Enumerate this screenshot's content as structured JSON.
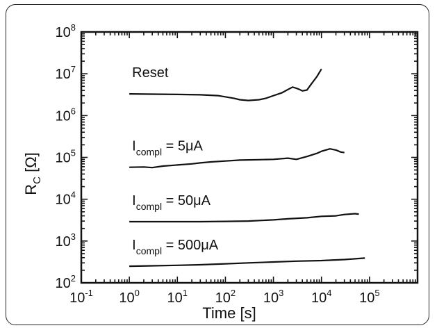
{
  "chart_data": {
    "type": "line",
    "xscale": "log",
    "yscale": "log",
    "xlim": [
      0.1,
      1000000
    ],
    "ylim": [
      100,
      100000000
    ],
    "xlabel": "Time [s]",
    "ylabel_main": "R",
    "ylabel_sub": "C",
    "ylabel_unit": "[Ω]",
    "x_ticks": [
      {
        "value": 0.1,
        "base": "10",
        "exp": "-1"
      },
      {
        "value": 1,
        "base": "10",
        "exp": "0"
      },
      {
        "value": 10,
        "base": "10",
        "exp": "1"
      },
      {
        "value": 100,
        "base": "10",
        "exp": "2"
      },
      {
        "value": 1000,
        "base": "10",
        "exp": "3"
      },
      {
        "value": 10000,
        "base": "10",
        "exp": "4"
      },
      {
        "value": 100000,
        "base": "10",
        "exp": "5"
      }
    ],
    "y_ticks": [
      {
        "value": 100,
        "base": "10",
        "exp": "2"
      },
      {
        "value": 1000,
        "base": "10",
        "exp": "3"
      },
      {
        "value": 10000,
        "base": "10",
        "exp": "4"
      },
      {
        "value": 100000,
        "base": "10",
        "exp": "5"
      },
      {
        "value": 1000000,
        "base": "10",
        "exp": "6"
      },
      {
        "value": 10000000,
        "base": "10",
        "exp": "7"
      },
      {
        "value": 100000000,
        "base": "10",
        "exp": "8"
      }
    ],
    "grid": false,
    "line_color": "#111111",
    "series": [
      {
        "label_main": "Reset",
        "label_sub": "",
        "label_tail": "",
        "x": [
          1,
          3,
          10,
          30,
          70,
          150,
          200,
          300,
          500,
          700,
          1000,
          1500,
          2000,
          2500,
          3000,
          3500,
          4000,
          5000,
          6000,
          8000,
          10000
        ],
        "y": [
          3300000,
          3250000,
          3200000,
          3150000,
          3000000,
          2600000,
          2400000,
          2300000,
          2400000,
          2600000,
          3000000,
          3500000,
          4200000,
          4800000,
          4500000,
          4200000,
          3900000,
          4100000,
          5500000,
          8500000,
          13000000
        ]
      },
      {
        "label_main": "I",
        "label_sub": "compl",
        "label_tail": " = 5μA",
        "x": [
          1,
          2,
          3,
          5,
          10,
          20,
          30,
          50,
          100,
          200,
          500,
          1000,
          2000,
          3000,
          5000,
          8000,
          10000,
          15000,
          20000,
          25000,
          30000
        ],
        "y": [
          58000,
          59000,
          57000,
          62000,
          66000,
          70000,
          74000,
          78000,
          82000,
          86000,
          88000,
          90000,
          96000,
          90000,
          105000,
          125000,
          140000,
          160000,
          150000,
          135000,
          130000
        ]
      },
      {
        "label_main": "I",
        "label_sub": "compl",
        "label_tail": " = 50μA",
        "x": [
          1,
          3,
          10,
          30,
          100,
          300,
          1000,
          2000,
          5000,
          10000,
          20000,
          30000,
          50000,
          60000
        ],
        "y": [
          2900,
          2900,
          2900,
          2900,
          2950,
          3000,
          3200,
          3400,
          3600,
          3900,
          4000,
          4300,
          4500,
          4400
        ]
      },
      {
        "label_main": "I",
        "label_sub": "compl",
        "label_tail": " = 500μA",
        "x": [
          1,
          3,
          10,
          30,
          100,
          300,
          1000,
          3000,
          10000,
          30000,
          80000
        ],
        "y": [
          250,
          255,
          262,
          270,
          285,
          300,
          315,
          330,
          340,
          360,
          390
        ]
      }
    ]
  }
}
